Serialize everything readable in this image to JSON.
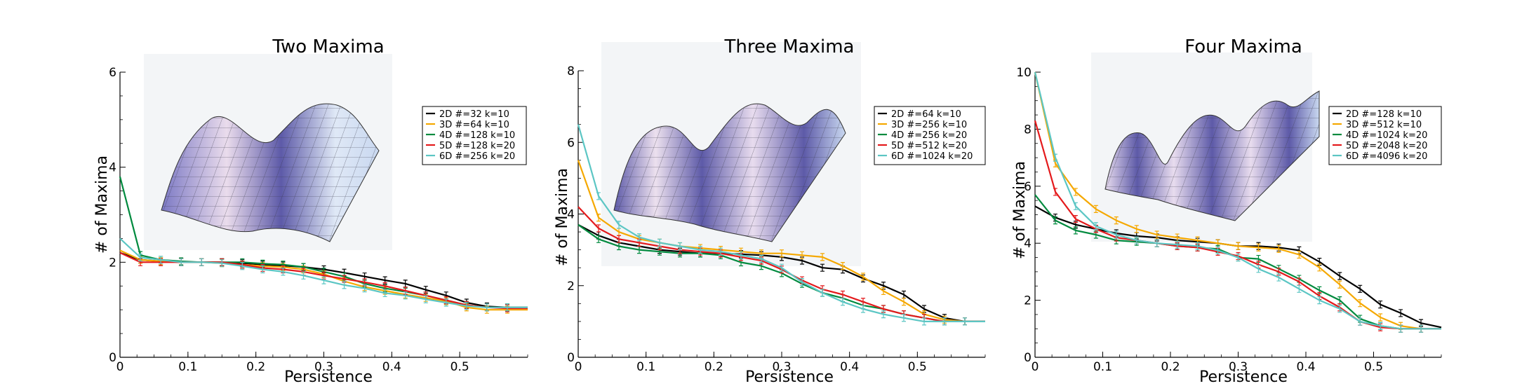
{
  "colors": {
    "2D": "#000000",
    "3D": "#f5a800",
    "4D": "#008a3e",
    "5D": "#e41a1c",
    "6D": "#5cc6c4"
  },
  "chart_data": [
    {
      "type": "line",
      "title": "Two Maxima",
      "xlabel": "Persistence",
      "ylabel": "# of Maxima",
      "xlim": [
        0,
        0.6
      ],
      "ylim": [
        0,
        6
      ],
      "xticks": [
        "0",
        "0.1",
        "0.2",
        "0.3",
        "0.4",
        "0.5"
      ],
      "yticks": [
        "0",
        "2",
        "4",
        "6"
      ],
      "ytick_values": [
        0,
        2,
        4,
        6
      ],
      "legend_position": "upper-right",
      "inset": "3D surface plot with two maxima",
      "x": [
        0,
        0.03,
        0.06,
        0.09,
        0.12,
        0.15,
        0.18,
        0.21,
        0.24,
        0.27,
        0.3,
        0.33,
        0.36,
        0.39,
        0.42,
        0.45,
        0.48,
        0.51,
        0.54,
        0.57,
        0.6
      ],
      "series": [
        {
          "name": "2D #=32 k=10",
          "key": "2D",
          "values": [
            2.2,
            2.05,
            2.02,
            2.0,
            2.0,
            2.0,
            1.98,
            1.95,
            1.93,
            1.9,
            1.85,
            1.78,
            1.7,
            1.62,
            1.55,
            1.42,
            1.3,
            1.15,
            1.07,
            1.05,
            1.05
          ]
        },
        {
          "name": "3D #=64 k=10",
          "key": "3D",
          "values": [
            2.25,
            2.05,
            2.02,
            2.0,
            2.0,
            1.98,
            1.95,
            1.92,
            1.9,
            1.85,
            1.75,
            1.6,
            1.48,
            1.4,
            1.32,
            1.25,
            1.18,
            1.05,
            1.0,
            1.0,
            1.0
          ]
        },
        {
          "name": "4D #=128 k=10",
          "key": "4D",
          "values": [
            3.8,
            2.15,
            2.05,
            2.02,
            2.0,
            2.0,
            2.0,
            1.97,
            1.95,
            1.9,
            1.8,
            1.7,
            1.55,
            1.45,
            1.38,
            1.3,
            1.2,
            1.1,
            1.05,
            1.05,
            1.05
          ]
        },
        {
          "name": "5D #=128 k=20",
          "key": "5D",
          "values": [
            2.2,
            2.0,
            2.0,
            2.0,
            2.0,
            2.0,
            1.95,
            1.88,
            1.85,
            1.8,
            1.72,
            1.65,
            1.58,
            1.5,
            1.4,
            1.3,
            1.2,
            1.1,
            1.05,
            1.03,
            1.03
          ]
        },
        {
          "name": "6D #=256 k=20",
          "key": "6D",
          "values": [
            2.5,
            2.1,
            2.05,
            2.0,
            2.0,
            1.98,
            1.92,
            1.85,
            1.8,
            1.72,
            1.62,
            1.52,
            1.45,
            1.35,
            1.3,
            1.22,
            1.15,
            1.08,
            1.05,
            1.05,
            1.05
          ]
        }
      ]
    },
    {
      "type": "line",
      "title": "Three Maxima",
      "xlabel": "Persistence",
      "ylabel": "# of Maxima",
      "xlim": [
        0,
        0.6
      ],
      "ylim": [
        0,
        8
      ],
      "xticks": [
        "0",
        "0.1",
        "0.2",
        "0.3",
        "0.4",
        "0.5"
      ],
      "yticks": [
        "0",
        "2",
        "4",
        "6",
        "8"
      ],
      "ytick_values": [
        0,
        2,
        4,
        6,
        8
      ],
      "legend_position": "upper-right",
      "inset": "3D surface plot with three maxima",
      "x": [
        0,
        0.03,
        0.06,
        0.09,
        0.12,
        0.15,
        0.18,
        0.21,
        0.24,
        0.27,
        0.3,
        0.33,
        0.36,
        0.39,
        0.42,
        0.45,
        0.48,
        0.51,
        0.54,
        0.57,
        0.6
      ],
      "series": [
        {
          "name": "2D #=64 k=10",
          "key": "2D",
          "values": [
            3.7,
            3.4,
            3.2,
            3.1,
            3.0,
            2.95,
            2.9,
            2.9,
            2.88,
            2.85,
            2.8,
            2.7,
            2.5,
            2.45,
            2.2,
            2.0,
            1.75,
            1.35,
            1.1,
            1.0,
            1.0
          ]
        },
        {
          "name": "3D #=256 k=10",
          "key": "3D",
          "values": [
            5.5,
            3.9,
            3.5,
            3.3,
            3.2,
            3.1,
            3.05,
            3.0,
            2.95,
            2.9,
            2.9,
            2.85,
            2.8,
            2.55,
            2.25,
            1.85,
            1.55,
            1.2,
            1.05,
            1.0,
            1.0
          ]
        },
        {
          "name": "4D #=256 k=20",
          "key": "4D",
          "values": [
            3.7,
            3.3,
            3.1,
            3.0,
            2.95,
            2.9,
            2.9,
            2.85,
            2.65,
            2.55,
            2.35,
            2.05,
            1.8,
            1.65,
            1.45,
            1.35,
            1.2,
            1.1,
            1.0,
            1.0,
            1.0
          ]
        },
        {
          "name": "5D #=512 k=20",
          "key": "5D",
          "values": [
            4.2,
            3.6,
            3.3,
            3.2,
            3.1,
            3.0,
            2.95,
            2.9,
            2.8,
            2.7,
            2.45,
            2.15,
            1.9,
            1.75,
            1.55,
            1.35,
            1.2,
            1.1,
            1.0,
            1.0,
            1.0
          ]
        },
        {
          "name": "6D #=1024 k=20",
          "key": "6D",
          "values": [
            6.5,
            4.5,
            3.7,
            3.35,
            3.2,
            3.1,
            3.0,
            2.95,
            2.85,
            2.75,
            2.5,
            2.1,
            1.8,
            1.55,
            1.35,
            1.2,
            1.1,
            1.0,
            1.0,
            1.0,
            1.0
          ]
        }
      ]
    },
    {
      "type": "line",
      "title": "Four Maxima",
      "xlabel": "Persistence",
      "ylabel": "# of Maxima",
      "xlim": [
        0,
        0.6
      ],
      "ylim": [
        0,
        10
      ],
      "xticks": [
        "0",
        "0.1",
        "0.2",
        "0.3",
        "0.4",
        "0.5"
      ],
      "yticks": [
        "0",
        "2",
        "4",
        "6",
        "8",
        "10"
      ],
      "ytick_values": [
        0,
        2,
        4,
        6,
        8,
        10
      ],
      "legend_position": "upper-right",
      "inset": "3D surface plot with four maxima",
      "x": [
        0,
        0.03,
        0.06,
        0.09,
        0.12,
        0.15,
        0.18,
        0.21,
        0.24,
        0.27,
        0.3,
        0.33,
        0.36,
        0.39,
        0.42,
        0.45,
        0.48,
        0.51,
        0.54,
        0.57,
        0.6
      ],
      "series": [
        {
          "name": "2D #=128 k=10",
          "key": "2D",
          "values": [
            5.3,
            4.9,
            4.65,
            4.5,
            4.35,
            4.25,
            4.2,
            4.1,
            4.05,
            4.0,
            3.9,
            3.9,
            3.85,
            3.75,
            3.35,
            2.85,
            2.4,
            1.85,
            1.55,
            1.2,
            1.05
          ]
        },
        {
          "name": "3D #=512 k=10",
          "key": "3D",
          "values": [
            10.0,
            6.8,
            5.8,
            5.2,
            4.8,
            4.5,
            4.3,
            4.2,
            4.1,
            4.0,
            3.9,
            3.85,
            3.8,
            3.6,
            3.15,
            2.55,
            1.9,
            1.4,
            1.1,
            1.0,
            1.0
          ]
        },
        {
          "name": "4D #=1024 k=20",
          "key": "4D",
          "values": [
            5.7,
            4.8,
            4.45,
            4.3,
            4.1,
            4.05,
            4.0,
            3.9,
            3.85,
            3.8,
            3.5,
            3.45,
            3.1,
            2.75,
            2.35,
            2.0,
            1.35,
            1.1,
            1.0,
            1.0,
            1.0
          ]
        },
        {
          "name": "5D #=2048 k=20",
          "key": "5D",
          "values": [
            8.3,
            5.8,
            4.85,
            4.5,
            4.2,
            4.1,
            4.0,
            3.9,
            3.85,
            3.7,
            3.55,
            3.25,
            3.0,
            2.65,
            2.15,
            1.75,
            1.25,
            1.05,
            1.0,
            1.0,
            1.0
          ]
        },
        {
          "name": "6D #=4096 k=20",
          "key": "6D",
          "values": [
            10.0,
            7.0,
            5.3,
            4.6,
            4.3,
            4.1,
            4.0,
            3.95,
            3.9,
            3.75,
            3.5,
            3.1,
            2.8,
            2.4,
            2.0,
            1.7,
            1.25,
            1.1,
            1.0,
            1.0,
            1.0
          ]
        }
      ]
    }
  ]
}
